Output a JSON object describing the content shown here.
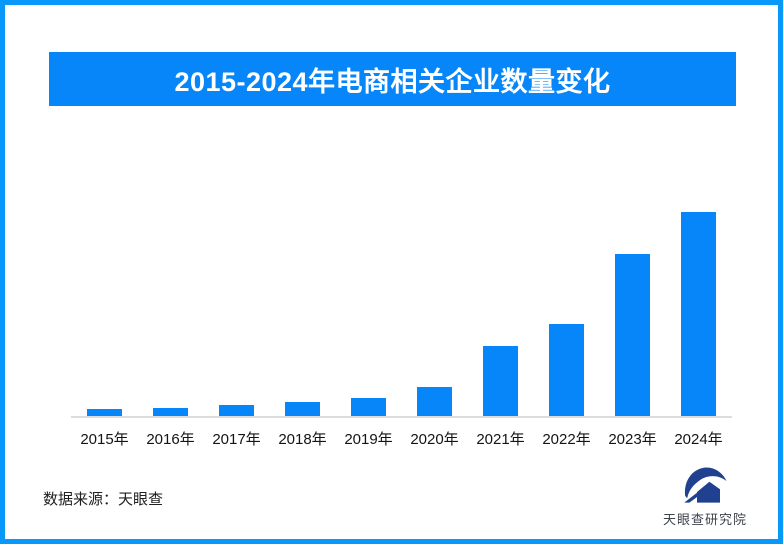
{
  "banner": {
    "title": "2015-2024年电商相关企业数量变化"
  },
  "chart_data": {
    "type": "bar",
    "title": "2015-2024年电商相关企业数量变化",
    "categories": [
      "2015年",
      "2016年",
      "2017年",
      "2018年",
      "2019年",
      "2020年",
      "2021年",
      "2022年",
      "2023年",
      "2024年"
    ],
    "values": [
      3.4,
      3.9,
      5.4,
      6.9,
      8.8,
      14.2,
      34.3,
      45.1,
      79.4,
      100
    ],
    "value_units": "relative bar height, tallest bar (2024) = 100; no numeric y-axis or data labels shown",
    "xlabel": "",
    "ylabel": "",
    "legend_position": "none",
    "grid": false,
    "data_labels": false,
    "bar_color": "#0686f8",
    "axis_line_color": "#dcdcdc"
  },
  "footer": {
    "source": "数据来源：天眼查",
    "brand": "天眼查研究院"
  },
  "colors": {
    "accent_blue": "#0686f8",
    "page_border_blue": "#0798fa",
    "axis_line_gray": "#dcdcdc",
    "logo_navy": "#20418f",
    "title_text": "#ffffff"
  }
}
